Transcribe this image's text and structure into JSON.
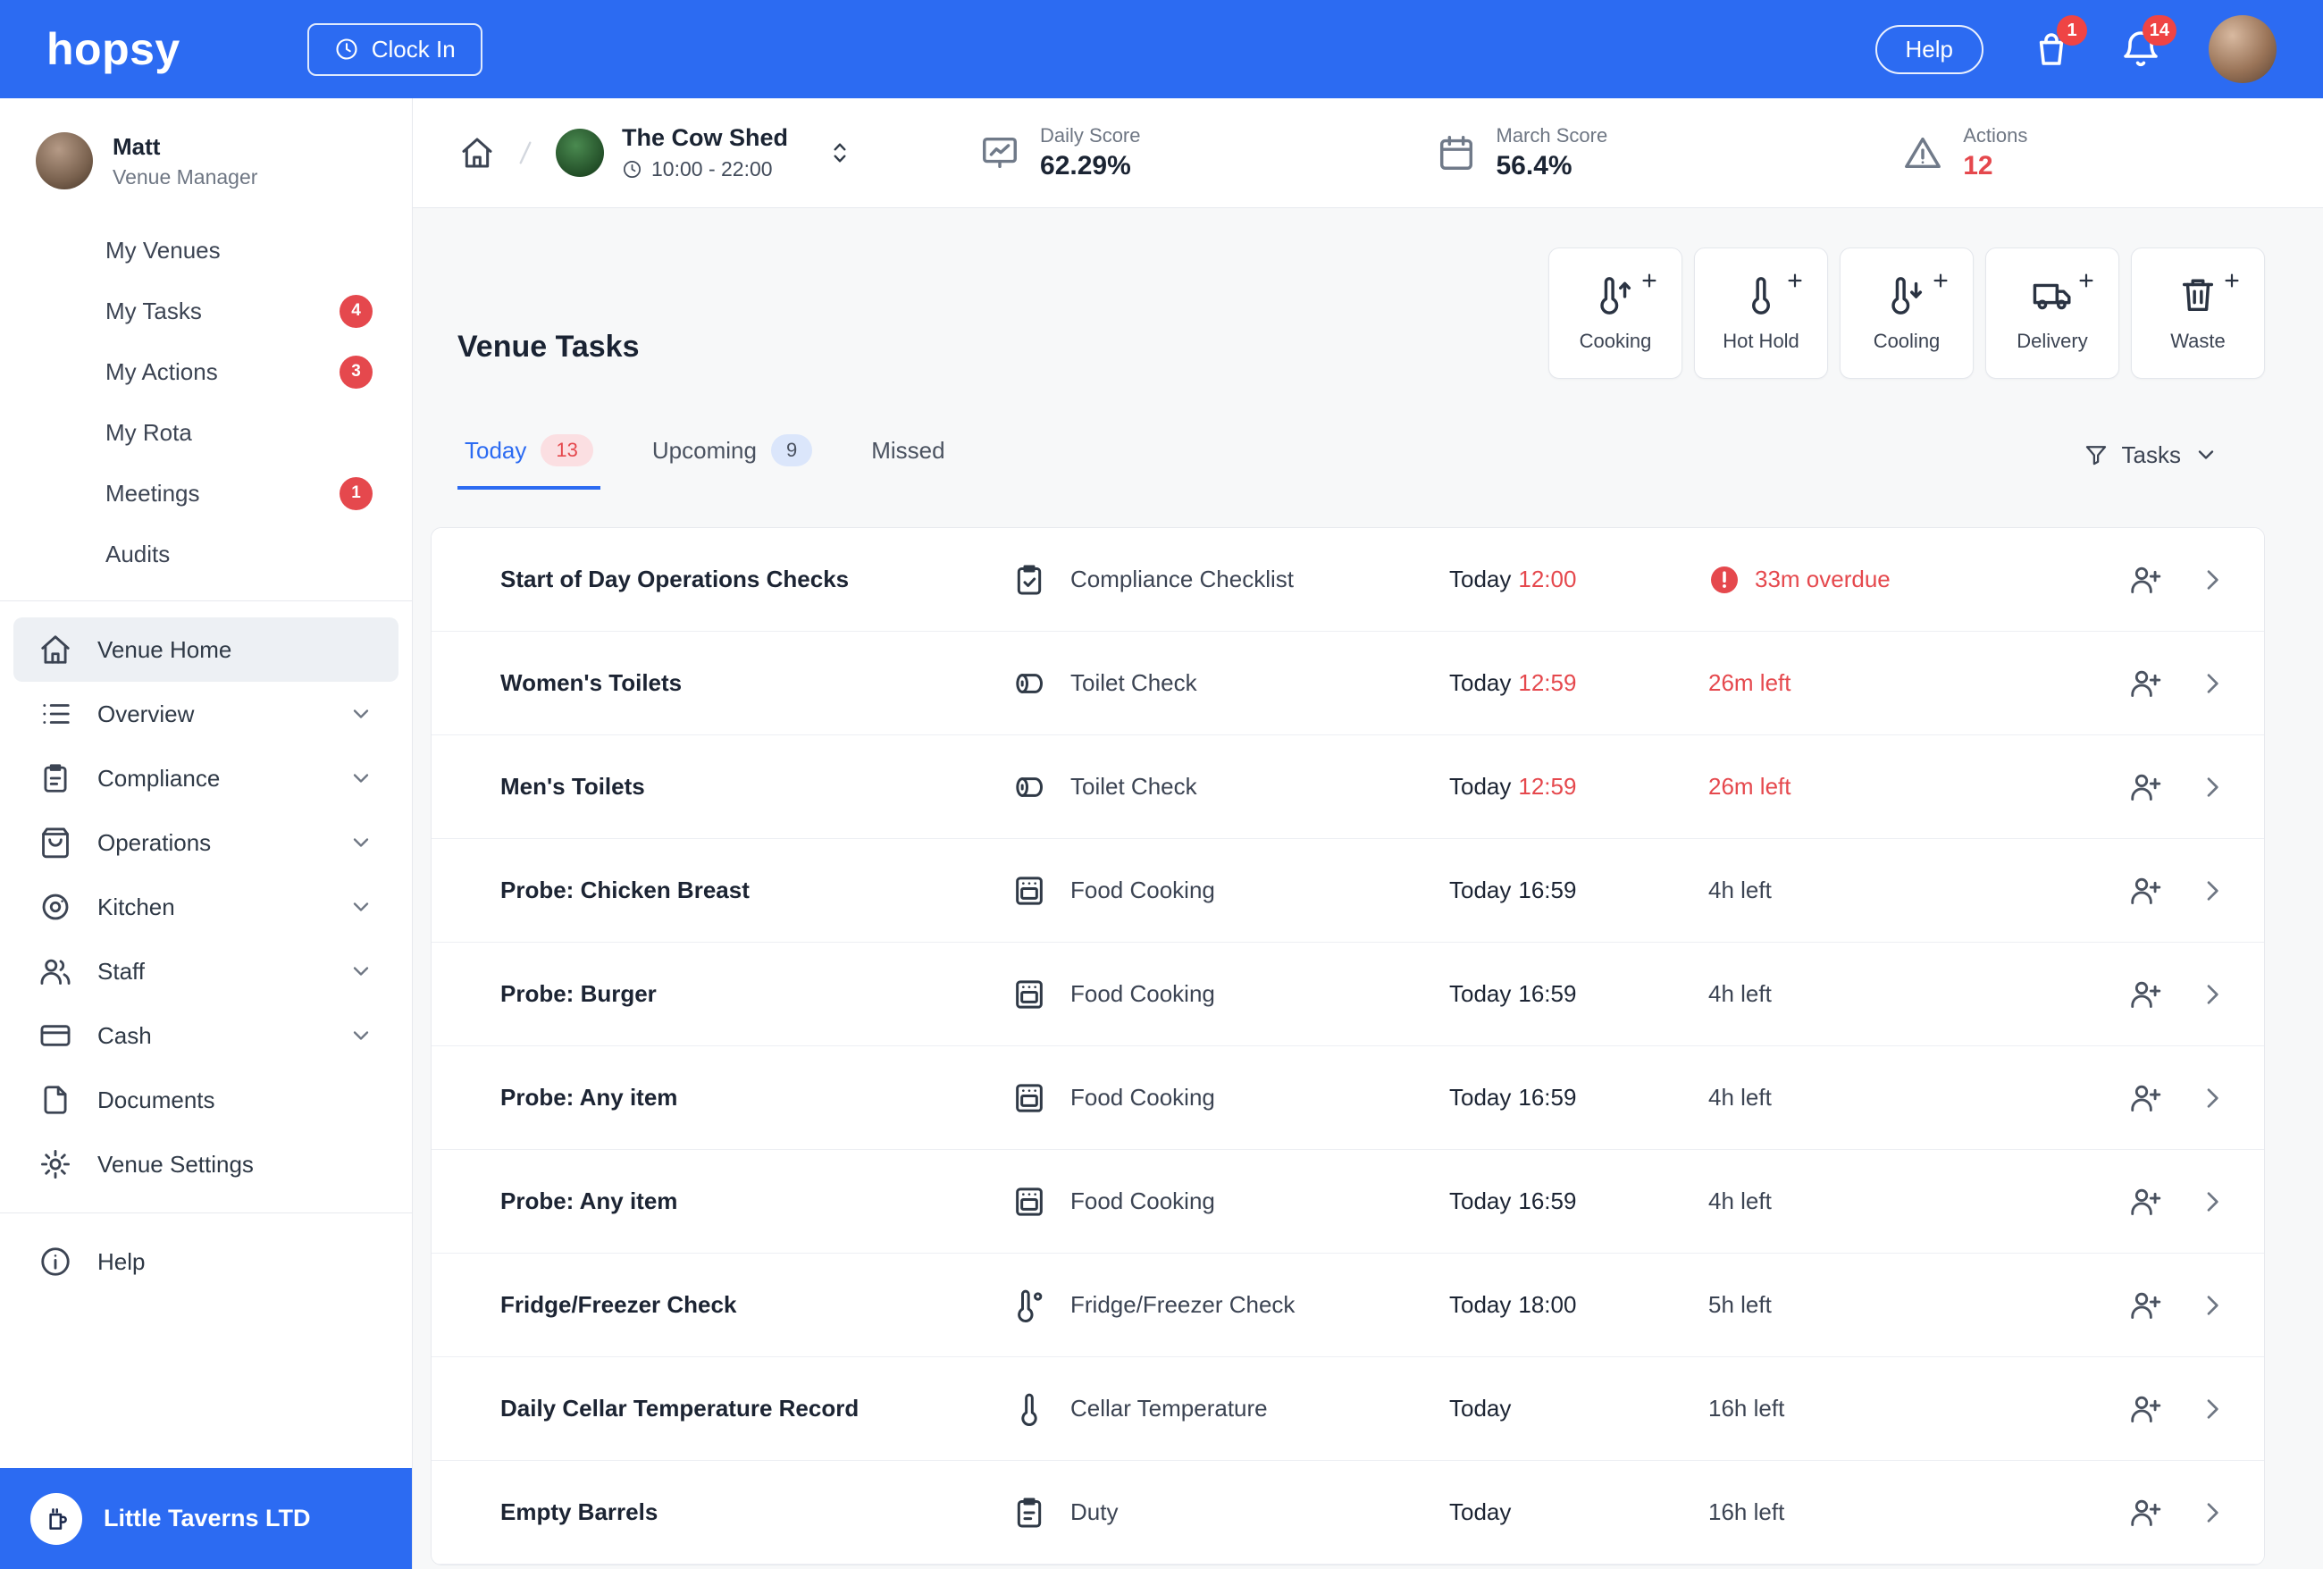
{
  "colors": {
    "accent": "#2c6bf2",
    "danger": "#e5484d"
  },
  "header": {
    "logo": "hopsy",
    "clock_in": "Clock In",
    "help": "Help",
    "orders_badge": "1",
    "notifications_badge": "14"
  },
  "sidebar": {
    "user": {
      "name": "Matt",
      "role": "Venue Manager"
    },
    "personal_items": [
      {
        "label": "My Venues"
      },
      {
        "label": "My Tasks",
        "badge": "4"
      },
      {
        "label": "My Actions",
        "badge": "3"
      },
      {
        "label": "My Rota"
      },
      {
        "label": "Meetings",
        "badge": "1"
      },
      {
        "label": "Audits"
      }
    ],
    "nav_items": [
      {
        "label": "Venue Home",
        "icon": "home",
        "active": true
      },
      {
        "label": "Overview",
        "icon": "list",
        "chevron": true
      },
      {
        "label": "Compliance",
        "icon": "clipboard",
        "chevron": true
      },
      {
        "label": "Operations",
        "icon": "shopping-bag",
        "chevron": true
      },
      {
        "label": "Kitchen",
        "icon": "kitchen",
        "chevron": true
      },
      {
        "label": "Staff",
        "icon": "users",
        "chevron": true
      },
      {
        "label": "Cash",
        "icon": "card",
        "chevron": true
      },
      {
        "label": "Documents",
        "icon": "file"
      },
      {
        "label": "Venue Settings",
        "icon": "gear"
      }
    ],
    "help_label": "Help",
    "company": "Little Taverns LTD"
  },
  "infobar": {
    "venue": {
      "name": "The Cow Shed",
      "hours": "10:00 - 22:00"
    },
    "stats": [
      {
        "label": "Daily Score",
        "value": "62.29%",
        "icon": "chart"
      },
      {
        "label": "March Score",
        "value": "56.4%",
        "icon": "calendar"
      },
      {
        "label": "Actions",
        "value": "12",
        "icon": "warning",
        "alert": true
      }
    ]
  },
  "main": {
    "title": "Venue Tasks",
    "quick_actions": [
      {
        "label": "Cooking",
        "icon": "thermo-up"
      },
      {
        "label": "Hot Hold",
        "icon": "thermo"
      },
      {
        "label": "Cooling",
        "icon": "thermo-down"
      },
      {
        "label": "Delivery",
        "icon": "truck"
      },
      {
        "label": "Waste",
        "icon": "trash"
      }
    ],
    "tabs": [
      {
        "label": "Today",
        "badge": "13",
        "badge_class": "badge-red",
        "active": true
      },
      {
        "label": "Upcoming",
        "badge": "9",
        "badge_class": "badge-blue"
      },
      {
        "label": "Missed"
      }
    ],
    "filter_label": "Tasks",
    "tasks": [
      {
        "name": "Start of Day Operations Checks",
        "icon": "clipboard-check",
        "category": "Compliance Checklist",
        "due_day": "Today",
        "due_time": "12:00",
        "due_time_urgent": true,
        "overdue": true,
        "status": "33m overdue",
        "status_urgent": true
      },
      {
        "name": "Women's Toilets",
        "icon": "toilet",
        "category": "Toilet Check",
        "due_day": "Today",
        "due_time": "12:59",
        "due_time_urgent": true,
        "status": "26m left",
        "status_urgent": true
      },
      {
        "name": "Men's Toilets",
        "icon": "toilet",
        "category": "Toilet Check",
        "due_day": "Today",
        "due_time": "12:59",
        "due_time_urgent": true,
        "status": "26m left",
        "status_urgent": true
      },
      {
        "name": "Probe: Chicken Breast",
        "icon": "oven",
        "category": "Food Cooking",
        "due_day": "Today",
        "due_time": "16:59",
        "status": "4h left"
      },
      {
        "name": "Probe: Burger",
        "icon": "oven",
        "category": "Food Cooking",
        "due_day": "Today",
        "due_time": "16:59",
        "status": "4h left"
      },
      {
        "name": "Probe: Any item",
        "icon": "oven",
        "category": "Food Cooking",
        "due_day": "Today",
        "due_time": "16:59",
        "status": "4h left"
      },
      {
        "name": "Probe: Any item",
        "icon": "oven",
        "category": "Food Cooking",
        "due_day": "Today",
        "due_time": "16:59",
        "status": "4h left"
      },
      {
        "name": "Fridge/Freezer Check",
        "icon": "thermo-deg",
        "category": "Fridge/Freezer Check",
        "due_day": "Today",
        "due_time": "18:00",
        "status": "5h left"
      },
      {
        "name": "Daily Cellar Temperature Record",
        "icon": "thermo",
        "category": "Cellar Temperature",
        "due_day": "Today",
        "status": "16h left"
      },
      {
        "name": "Empty Barrels",
        "icon": "clipboard",
        "category": "Duty",
        "due_day": "Today",
        "status": "16h left"
      }
    ]
  }
}
